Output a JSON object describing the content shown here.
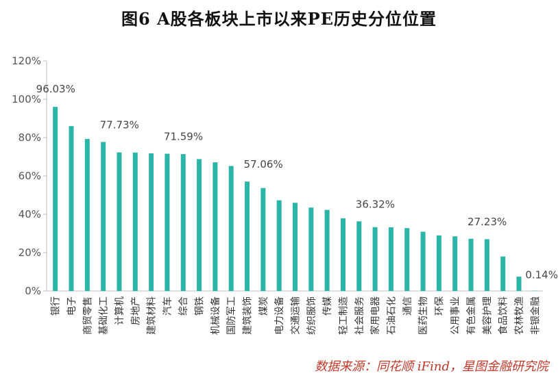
{
  "title": "图6 A股各板块上市以来PE历史分位位置",
  "source": "数据来源：同花顺 iFind，星图金融研究院",
  "chart_data": {
    "type": "bar",
    "title": "图6 A股各板块上市以来PE历史分位位置",
    "xlabel": "",
    "ylabel": "",
    "ylim": [
      0,
      120
    ],
    "yticks": [
      "0%",
      "20%",
      "40%",
      "60%",
      "80%",
      "100%",
      "120%"
    ],
    "grid": false,
    "legend": "none",
    "bar_color": "#2bb5a8",
    "categories": [
      "银行",
      "电子",
      "商贸零售",
      "基础化工",
      "计算机",
      "房地产",
      "建筑材料",
      "汽车",
      "综合",
      "钢铁",
      "机械设备",
      "国防军工",
      "建筑装饰",
      "煤炭",
      "电力设备",
      "交通运输",
      "纺织服饰",
      "传媒",
      "轻工制造",
      "社会服务",
      "家用电器",
      "石油石化",
      "通信",
      "医药生物",
      "环保",
      "公用事业",
      "有色金属",
      "美容护理",
      "食品饮料",
      "农林牧渔",
      "非银金融"
    ],
    "values": [
      96.03,
      86.0,
      79.3,
      77.73,
      72.3,
      72.2,
      71.8,
      71.59,
      71.4,
      68.8,
      67.1,
      65.2,
      57.06,
      53.7,
      47.3,
      46.0,
      43.5,
      42.3,
      37.9,
      36.32,
      33.3,
      33.2,
      32.8,
      30.9,
      29.0,
      28.5,
      27.23,
      27.0,
      18.0,
      7.5,
      0.14
    ],
    "annotations": [
      {
        "index": 0,
        "text": "96.03%"
      },
      {
        "index": 3,
        "text": "77.73%"
      },
      {
        "index": 7,
        "text": "71.59%"
      },
      {
        "index": 12,
        "text": "57.06%"
      },
      {
        "index": 19,
        "text": "36.32%"
      },
      {
        "index": 26,
        "text": "27.23%"
      },
      {
        "index": 30,
        "text": "0.14%"
      }
    ]
  }
}
